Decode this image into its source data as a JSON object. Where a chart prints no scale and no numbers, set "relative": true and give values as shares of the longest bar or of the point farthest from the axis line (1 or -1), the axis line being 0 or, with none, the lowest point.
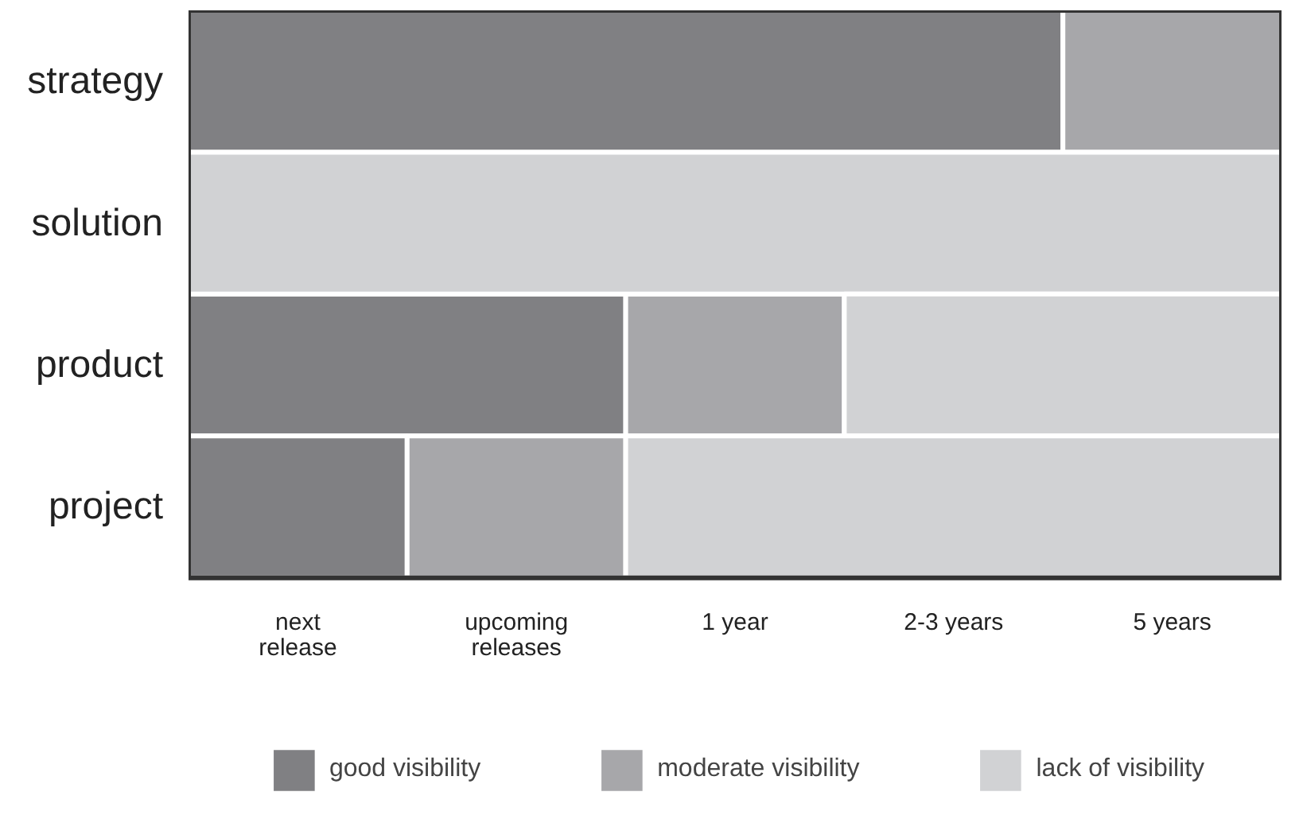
{
  "chart_data": {
    "type": "bar",
    "orientation": "horizontal",
    "stacked": true,
    "relative": true,
    "categories": [
      "strategy",
      "solution",
      "product",
      "project"
    ],
    "series": [
      {
        "name": "good visibility",
        "color": "#808083",
        "values": [
          0.8,
          0,
          0.4,
          0.2
        ]
      },
      {
        "name": "moderate visibility",
        "color": "#a7a7aa",
        "values": [
          0.2,
          0,
          0.2,
          0.2
        ]
      },
      {
        "name": "lack of visibility",
        "color": "#d1d2d4",
        "values": [
          0,
          1,
          0.4,
          0.6
        ]
      }
    ],
    "annotations": [
      "next\nrelease",
      "upcoming\nreleases",
      "1 year",
      "2-3 years",
      "5 years"
    ],
    "grid": false,
    "legend": "bottom"
  }
}
